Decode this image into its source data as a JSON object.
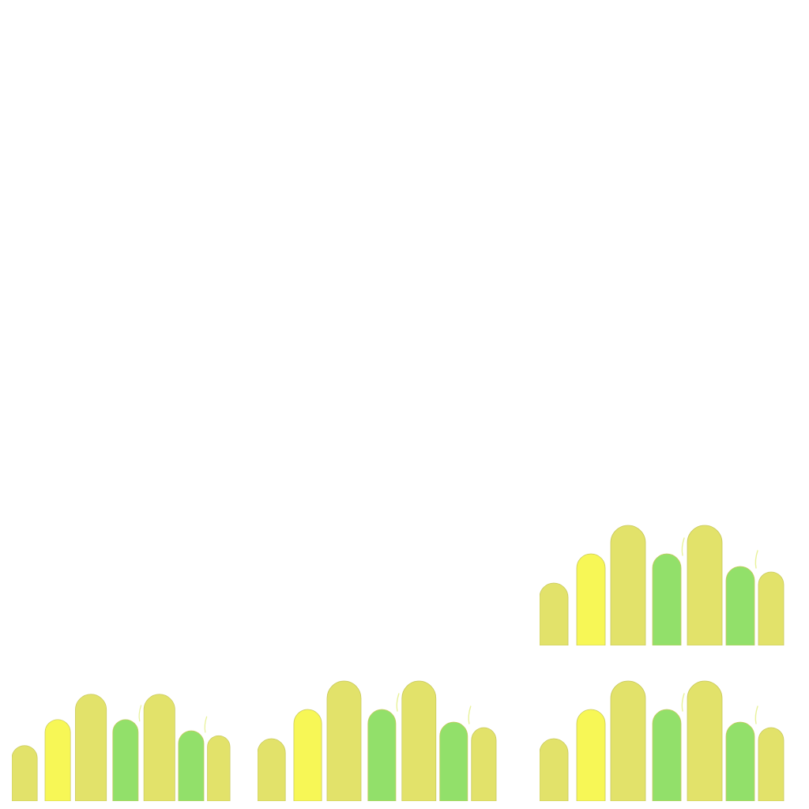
{
  "canvas": {
    "background": "#ffffff"
  },
  "palette": {
    "olive": "#e2e26a",
    "yellow": "#f7f756",
    "green": "#92e06a",
    "edge": "#c9c95e",
    "flick": "#e8f29a"
  },
  "clusters": [
    {
      "name": "cluster-top-right",
      "bars": [
        {
          "color": "olive",
          "level": 0.52
        },
        {
          "color": "yellow",
          "level": 0.76
        },
        {
          "color": "olive",
          "level": 1.0
        },
        {
          "color": "green",
          "level": 0.76
        },
        {
          "color": "olive",
          "level": 1.0
        },
        {
          "color": "green",
          "level": 0.66
        },
        {
          "color": "olive",
          "level": 0.61
        }
      ],
      "flicks": [
        3,
        5
      ]
    },
    {
      "name": "cluster-bottom-left",
      "bars": [
        {
          "color": "olive",
          "level": 0.52
        },
        {
          "color": "yellow",
          "level": 0.76
        },
        {
          "color": "olive",
          "level": 1.0
        },
        {
          "color": "green",
          "level": 0.76
        },
        {
          "color": "olive",
          "level": 1.0
        },
        {
          "color": "green",
          "level": 0.66
        },
        {
          "color": "olive",
          "level": 0.61
        }
      ],
      "flicks": [
        3,
        5
      ]
    },
    {
      "name": "cluster-bottom-middle",
      "bars": [
        {
          "color": "olive",
          "level": 0.52
        },
        {
          "color": "yellow",
          "level": 0.76
        },
        {
          "color": "olive",
          "level": 1.0
        },
        {
          "color": "green",
          "level": 0.76
        },
        {
          "color": "olive",
          "level": 1.0
        },
        {
          "color": "green",
          "level": 0.66
        },
        {
          "color": "olive",
          "level": 0.61
        }
      ],
      "flicks": [
        3,
        5
      ]
    },
    {
      "name": "cluster-bottom-right",
      "bars": [
        {
          "color": "olive",
          "level": 0.52
        },
        {
          "color": "yellow",
          "level": 0.76
        },
        {
          "color": "olive",
          "level": 1.0
        },
        {
          "color": "green",
          "level": 0.76
        },
        {
          "color": "olive",
          "level": 1.0
        },
        {
          "color": "green",
          "level": 0.66
        },
        {
          "color": "olive",
          "level": 0.61
        }
      ],
      "flicks": [
        3,
        5
      ]
    }
  ]
}
